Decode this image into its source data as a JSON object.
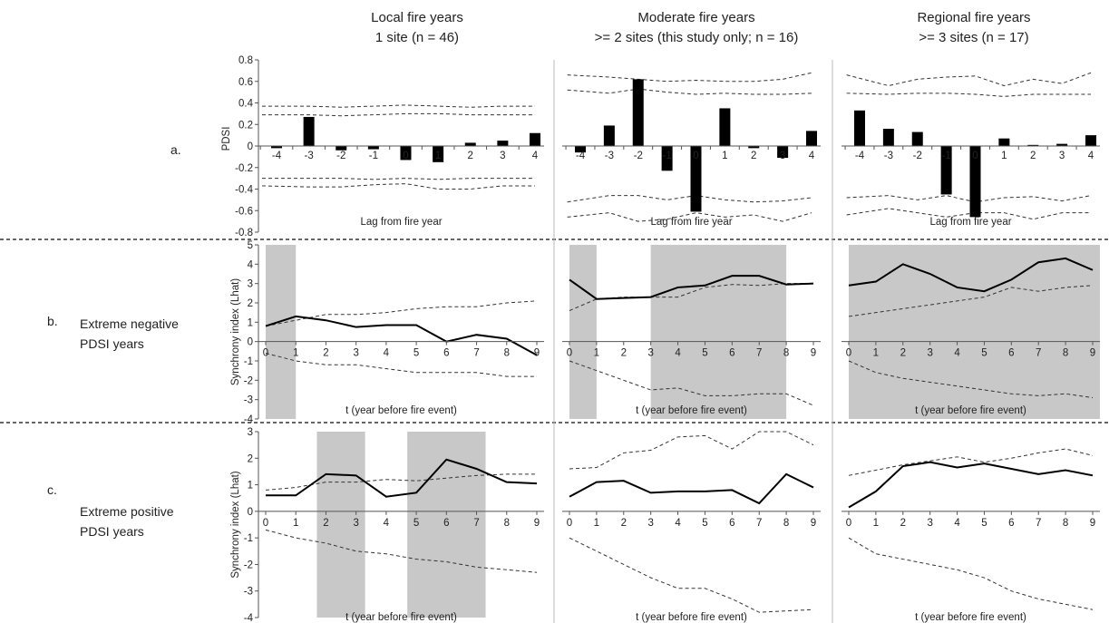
{
  "columns": [
    {
      "title": "Local fire years",
      "subtitle": "1 site (n = 46)"
    },
    {
      "title": "Moderate fire years",
      "subtitle": ">= 2 sites (this study only; n = 16)"
    },
    {
      "title": "Regional fire years",
      "subtitle": ">= 3 sites (n = 17)"
    }
  ],
  "rows": [
    {
      "letter": "a.",
      "label_lines": []
    },
    {
      "letter": "b.",
      "label_lines": [
        "Extreme negative",
        "PDSI years"
      ]
    },
    {
      "letter": "c.",
      "label_lines": [
        "Extreme positive",
        "PDSI years"
      ]
    }
  ],
  "chart_data": [
    {
      "id": "a1",
      "type": "bar",
      "ylabel": "PDSI",
      "xlabel": "Lag from fire year",
      "ylim": [
        -0.8,
        0.8
      ],
      "yticks": [
        0.8,
        0.6,
        0.4,
        0.2,
        0,
        -0.2,
        -0.4,
        -0.6,
        -0.8
      ],
      "categories": [
        "-4",
        "-3",
        "-2",
        "-1",
        "0",
        "1",
        "2",
        "3",
        "4"
      ],
      "values": [
        -0.02,
        0.27,
        -0.04,
        -0.03,
        -0.13,
        -0.15,
        0.03,
        0.05,
        0.12
      ],
      "ci_bands": [
        [
          0.37,
          0.37,
          0.36,
          0.37,
          0.38,
          0.37,
          0.36,
          0.37,
          0.37
        ],
        [
          0.29,
          0.29,
          0.28,
          0.29,
          0.3,
          0.3,
          0.29,
          0.29,
          0.29
        ],
        [
          -0.3,
          -0.3,
          -0.3,
          -0.31,
          -0.3,
          -0.31,
          -0.3,
          -0.3,
          -0.3
        ],
        [
          -0.37,
          -0.38,
          -0.38,
          -0.36,
          -0.35,
          -0.4,
          -0.4,
          -0.37,
          -0.37
        ]
      ]
    },
    {
      "id": "a2",
      "type": "bar",
      "ylabel": "",
      "xlabel": "Lag from fire year",
      "ylim": [
        -0.8,
        0.8
      ],
      "yticks": [],
      "categories": [
        "-4",
        "-3",
        "-2",
        "-1",
        "0",
        "1",
        "2",
        "3",
        "4"
      ],
      "values": [
        -0.06,
        0.19,
        0.62,
        -0.23,
        -0.61,
        0.35,
        -0.02,
        -0.11,
        0.14
      ],
      "ci_bands": [
        [
          0.66,
          0.64,
          0.62,
          0.6,
          0.61,
          0.6,
          0.6,
          0.62,
          0.68
        ],
        [
          0.52,
          0.49,
          0.53,
          0.5,
          0.48,
          0.49,
          0.48,
          0.48,
          0.49
        ],
        [
          -0.52,
          -0.46,
          -0.46,
          -0.5,
          -0.46,
          -0.5,
          -0.52,
          -0.51,
          -0.48
        ],
        [
          -0.66,
          -0.62,
          -0.7,
          -0.68,
          -0.62,
          -0.66,
          -0.64,
          -0.7,
          -0.62
        ]
      ]
    },
    {
      "id": "a3",
      "type": "bar",
      "ylabel": "",
      "xlabel": "Lag from fire year",
      "ylim": [
        -0.8,
        0.8
      ],
      "yticks": [],
      "categories": [
        "-4",
        "-3",
        "-2",
        "-1",
        "0",
        "1",
        "2",
        "3",
        "4"
      ],
      "values": [
        0.33,
        0.16,
        0.13,
        -0.45,
        -0.66,
        0.07,
        0.01,
        0.02,
        0.1
      ],
      "ci_bands": [
        [
          0.66,
          0.56,
          0.62,
          0.64,
          0.65,
          0.56,
          0.62,
          0.58,
          0.68
        ],
        [
          0.49,
          0.48,
          0.49,
          0.49,
          0.48,
          0.46,
          0.48,
          0.48,
          0.48
        ],
        [
          -0.48,
          -0.46,
          -0.5,
          -0.46,
          -0.52,
          -0.48,
          -0.47,
          -0.51,
          -0.46
        ],
        [
          -0.64,
          -0.58,
          -0.62,
          -0.66,
          -0.62,
          -0.62,
          -0.68,
          -0.62,
          -0.62
        ]
      ]
    },
    {
      "id": "b1",
      "type": "line",
      "ylabel": "Synchrony index (Lhat)",
      "xlabel": "t (year before fire event)",
      "ylim": [
        -4,
        5
      ],
      "yticks": [
        5,
        4,
        3,
        2,
        1,
        0,
        -1,
        -2,
        -3,
        -4
      ],
      "x": [
        0,
        1,
        2,
        3,
        4,
        5,
        6,
        7,
        8,
        9
      ],
      "values": [
        0.8,
        1.3,
        1.1,
        0.75,
        0.85,
        0.85,
        0.0,
        0.35,
        0.15,
        -0.7
      ],
      "upper": [
        0.8,
        1.1,
        1.4,
        1.4,
        1.5,
        1.7,
        1.8,
        1.8,
        2.0,
        2.1
      ],
      "lower": [
        -0.6,
        -1.0,
        -1.2,
        -1.2,
        -1.4,
        -1.6,
        -1.6,
        -1.6,
        -1.8,
        -1.8
      ],
      "shaded": [
        [
          0,
          1
        ]
      ]
    },
    {
      "id": "b2",
      "type": "line",
      "ylabel": "",
      "xlabel": "t (year before fire event)",
      "ylim": [
        -4,
        5
      ],
      "yticks": [],
      "x": [
        0,
        1,
        2,
        3,
        4,
        5,
        6,
        7,
        8,
        9
      ],
      "values": [
        3.2,
        2.2,
        2.25,
        2.3,
        2.8,
        2.9,
        3.4,
        3.4,
        2.95,
        3.0
      ],
      "upper": [
        1.6,
        2.2,
        2.3,
        2.3,
        2.3,
        2.8,
        2.95,
        2.9,
        3.0,
        3.0
      ],
      "lower": [
        -1.0,
        -1.5,
        -2.0,
        -2.5,
        -2.4,
        -2.8,
        -2.8,
        -2.7,
        -2.7,
        -3.3
      ],
      "shaded": [
        [
          0,
          1
        ],
        [
          3,
          8
        ]
      ]
    },
    {
      "id": "b3",
      "type": "line",
      "ylabel": "",
      "xlabel": "t (year before fire event)",
      "ylim": [
        -4,
        5
      ],
      "yticks": [],
      "x": [
        0,
        1,
        2,
        3,
        4,
        5,
        6,
        7,
        8,
        9
      ],
      "values": [
        2.9,
        3.1,
        4.0,
        3.5,
        2.8,
        2.6,
        3.2,
        4.1,
        4.3,
        3.7
      ],
      "upper": [
        1.3,
        1.5,
        1.7,
        1.9,
        2.1,
        2.3,
        2.8,
        2.6,
        2.8,
        2.9
      ],
      "lower": [
        -1.0,
        -1.6,
        -1.9,
        -2.1,
        -2.3,
        -2.5,
        -2.7,
        -2.8,
        -2.7,
        -2.9
      ],
      "shaded": [
        [
          0,
          9.5
        ]
      ]
    },
    {
      "id": "c1",
      "type": "line",
      "ylabel": "Synchrony index (Lhat)",
      "xlabel": "t (year before fire event)",
      "ylim": [
        -4,
        3
      ],
      "yticks": [
        3,
        2,
        1,
        0,
        -1,
        -2,
        -3,
        -4
      ],
      "x": [
        0,
        1,
        2,
        3,
        4,
        5,
        6,
        7,
        8,
        9
      ],
      "values": [
        0.6,
        0.6,
        1.4,
        1.35,
        0.55,
        0.7,
        1.95,
        1.6,
        1.1,
        1.05
      ],
      "upper": [
        0.8,
        0.9,
        1.1,
        1.1,
        1.2,
        1.15,
        1.25,
        1.35,
        1.4,
        1.4
      ],
      "lower": [
        -0.7,
        -1.0,
        -1.2,
        -1.5,
        -1.6,
        -1.8,
        -1.9,
        -2.1,
        -2.2,
        -2.3
      ],
      "shaded": [
        [
          1.7,
          3.3
        ],
        [
          4.7,
          7.3
        ]
      ]
    },
    {
      "id": "c2",
      "type": "line",
      "ylabel": "",
      "xlabel": "t (year before fire event)",
      "ylim": [
        -4,
        3
      ],
      "yticks": [],
      "x": [
        0,
        1,
        2,
        3,
        4,
        5,
        6,
        7,
        8,
        9
      ],
      "values": [
        0.55,
        1.1,
        1.15,
        0.7,
        0.75,
        0.75,
        0.8,
        0.3,
        1.4,
        0.9
      ],
      "upper": [
        1.6,
        1.65,
        2.2,
        2.3,
        2.8,
        2.85,
        2.35,
        3.0,
        3.0,
        2.5
      ],
      "lower": [
        -1.0,
        -1.5,
        -2.0,
        -2.5,
        -2.9,
        -2.9,
        -3.3,
        -3.8,
        -3.75,
        -3.7
      ],
      "shaded": []
    },
    {
      "id": "c3",
      "type": "line",
      "ylabel": "",
      "xlabel": "t (year before fire event)",
      "ylim": [
        -4,
        3
      ],
      "yticks": [],
      "x": [
        0,
        1,
        2,
        3,
        4,
        5,
        6,
        7,
        8,
        9
      ],
      "values": [
        0.15,
        0.75,
        1.7,
        1.85,
        1.65,
        1.8,
        1.6,
        1.4,
        1.55,
        1.35
      ],
      "upper": [
        1.35,
        1.55,
        1.75,
        1.9,
        2.05,
        1.85,
        2.0,
        2.2,
        2.35,
        2.1
      ],
      "lower": [
        -1.0,
        -1.6,
        -1.8,
        -2.0,
        -2.2,
        -2.5,
        -3.0,
        -3.3,
        -3.5,
        -3.7
      ],
      "shaded": []
    }
  ]
}
